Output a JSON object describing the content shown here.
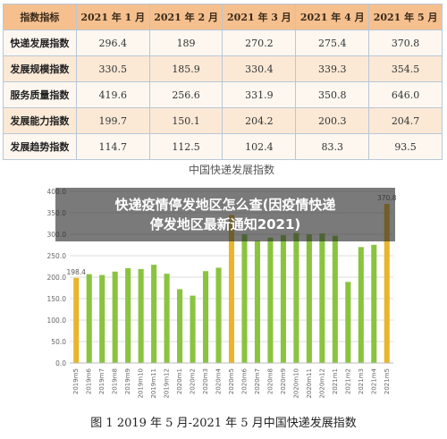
{
  "table": {
    "header": [
      "指数指标",
      "2021 年 1 月",
      "2021 年 2 月",
      "2021 年 3 月",
      "2021 年 4 月",
      "2021 年 5 月"
    ],
    "rows": [
      {
        "label": "快递发展指数",
        "values": [
          "296.4",
          "189",
          "270.2",
          "275.4",
          "370.8"
        ]
      },
      {
        "label": "发展规模指数",
        "values": [
          "330.5",
          "185.9",
          "330.4",
          "339.3",
          "354.5"
        ]
      },
      {
        "label": "服务质量指数",
        "values": [
          "419.6",
          "256.6",
          "331.9",
          "350.8",
          "646.0"
        ]
      },
      {
        "label": "发展能力指数",
        "values": [
          "199.7",
          "150.1",
          "204.2",
          "200.3",
          "204.7"
        ]
      },
      {
        "label": "发展趋势指数",
        "values": [
          "114.7",
          "112.5",
          "102.4",
          "83.3",
          "93.5"
        ]
      }
    ]
  },
  "banner": {
    "line1": "快递疫情停发地区怎么查(因疫情快递",
    "line2": "停发地区最新通知2021)"
  },
  "caption": "图 1  2019 年 5 月-2021 年 5 月中国快递发展指数",
  "colors": {
    "bar": "#8ac43f",
    "highlight": "#e8b52c",
    "grid": "#dddddd"
  },
  "chart_data": {
    "type": "bar",
    "title": "中国快递发展指数",
    "categories": [
      "2019m5",
      "2019m6",
      "2019m7",
      "2019m8",
      "2019m9",
      "2019m10",
      "2019m11",
      "2019m12",
      "2020m1",
      "2020m2",
      "2020m3",
      "2020m4",
      "2020m5",
      "2020m6",
      "2020m7",
      "2020m8",
      "2020m9",
      "2020m10",
      "2020m11",
      "2020m12",
      "2021m1",
      "2021m2",
      "2021m3",
      "2021m4",
      "2021m5"
    ],
    "values": [
      198.4,
      207,
      205,
      213,
      221,
      219,
      229,
      208,
      172,
      157,
      214,
      222,
      345,
      300,
      285,
      292,
      298,
      303,
      300,
      302,
      296.4,
      189,
      270.2,
      275.4,
      370.8
    ],
    "highlight_indices": [
      0,
      12,
      24
    ],
    "data_labels": {
      "0": "198.4",
      "24": "370.8"
    },
    "yticks": [
      "0.0",
      "50.0",
      "100.0",
      "150.0",
      "200.0",
      "250.0",
      "300.0",
      "350.0",
      "400.0"
    ],
    "ylim": [
      0,
      400
    ],
    "grid": true
  }
}
